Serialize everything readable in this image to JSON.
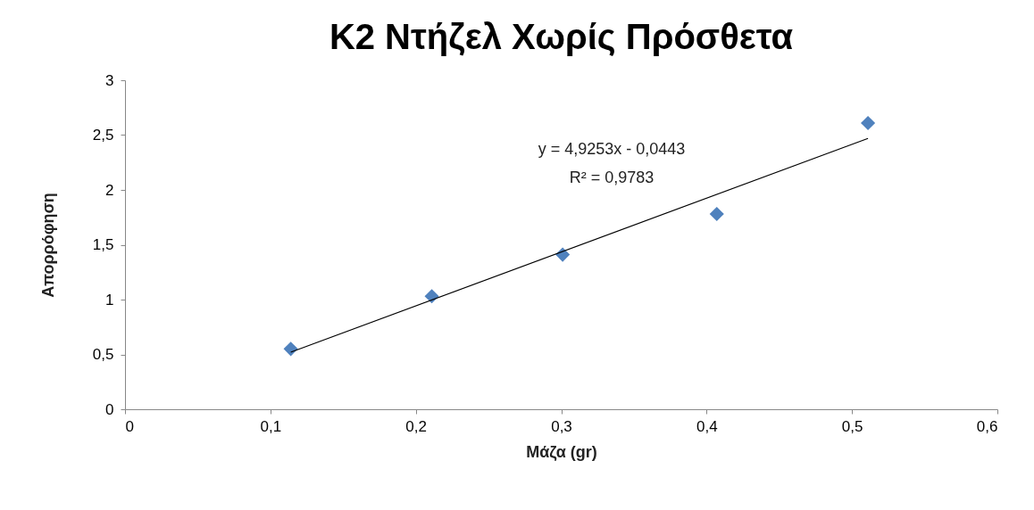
{
  "chart_data": {
    "type": "scatter",
    "title": "Κ2 Ντήζελ Χωρίς Πρόσθετα",
    "xlabel": "Μάζα (gr)",
    "ylabel": "Απορρόφηση",
    "series": [
      {
        "color": "#4f81bd",
        "marker": "diamond",
        "x": [
          0.114,
          0.211,
          0.301,
          0.407,
          0.511
        ],
        "values": [
          0.55,
          1.03,
          1.41,
          1.78,
          2.61
        ]
      },
      {
        "type": "line",
        "color": "#000000",
        "marker": "none",
        "line_style": "solid",
        "x": [
          0.114,
          0.511
        ],
        "values": [
          0.52,
          2.47
        ]
      }
    ],
    "annotations": [
      "y = 4,9253x - 0,0443",
      "R² = 0,9783"
    ],
    "xlim": [
      0,
      0.6
    ],
    "xticks": [
      0,
      {
        "value": 0.1,
        "label": "0,1"
      },
      {
        "value": 0.2,
        "label": "0,2"
      },
      {
        "value": 0.3,
        "label": "0,3"
      },
      {
        "value": 0.4,
        "label": "0,4"
      },
      {
        "value": 0.5,
        "label": "0,5"
      },
      {
        "value": 0.6,
        "label": "0,6"
      }
    ],
    "ylim": [
      0,
      3
    ],
    "yticks": [
      0,
      {
        "value": 0.5,
        "label": "0,5"
      },
      1,
      {
        "value": 1.5,
        "label": "1,5"
      },
      2,
      {
        "value": 2.5,
        "label": "2,5"
      },
      3
    ],
    "grid": false
  }
}
